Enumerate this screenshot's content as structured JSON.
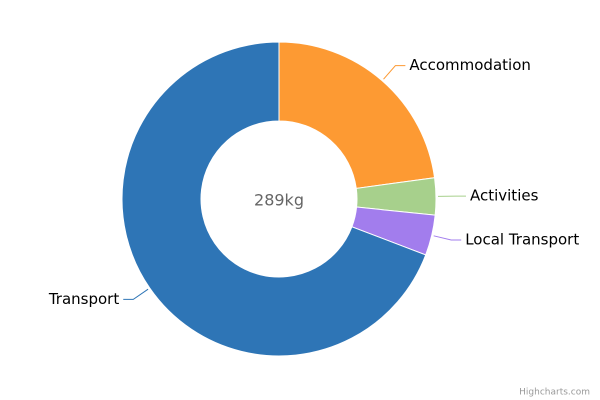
{
  "chart_data": {
    "type": "pie",
    "categories": [
      "Accommodation",
      "Activities",
      "Local Transport",
      "Transport"
    ],
    "values": [
      66,
      11,
      12,
      200
    ],
    "colors": [
      "#fd9a33",
      "#a7d08c",
      "#a27ded",
      "#2e75b6"
    ],
    "center_label": "289kg",
    "credit": "Highcharts.com"
  }
}
